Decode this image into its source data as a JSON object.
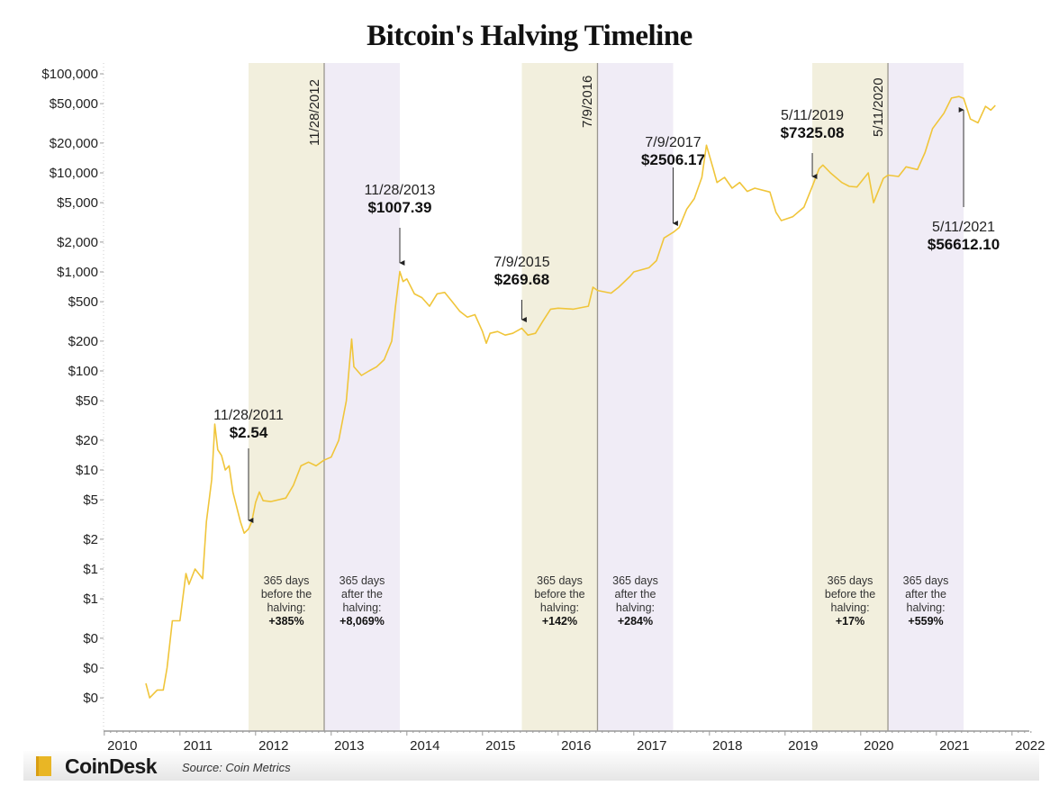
{
  "chart_data": {
    "type": "line",
    "title": "Bitcoin's Halving Timeline",
    "xlabel": "",
    "ylabel": "",
    "y_scale": "log",
    "ylim": [
      0.04,
      110000
    ],
    "xlim": [
      2010,
      2022.3
    ],
    "line_color": "#f0c53a",
    "x_ticks": [
      {
        "value": 2010,
        "label": "2010"
      },
      {
        "value": 2011,
        "label": "2011"
      },
      {
        "value": 2012,
        "label": "2012"
      },
      {
        "value": 2013,
        "label": "2013"
      },
      {
        "value": 2014,
        "label": "2014"
      },
      {
        "value": 2015,
        "label": "2015"
      },
      {
        "value": 2016,
        "label": "2016"
      },
      {
        "value": 2017,
        "label": "2017"
      },
      {
        "value": 2018,
        "label": "2018"
      },
      {
        "value": 2019,
        "label": "2019"
      },
      {
        "value": 2020,
        "label": "2020"
      },
      {
        "value": 2021,
        "label": "2021"
      },
      {
        "value": 2022,
        "label": "2022"
      }
    ],
    "y_ticks": [
      {
        "value": 100000,
        "label": "$100,000"
      },
      {
        "value": 50000,
        "label": "$50,000"
      },
      {
        "value": 20000,
        "label": "$20,000"
      },
      {
        "value": 10000,
        "label": "$10,000"
      },
      {
        "value": 5000,
        "label": "$5,000"
      },
      {
        "value": 2000,
        "label": "$2,000"
      },
      {
        "value": 1000,
        "label": "$1,000"
      },
      {
        "value": 500,
        "label": "$500"
      },
      {
        "value": 200,
        "label": "$200"
      },
      {
        "value": 100,
        "label": "$100"
      },
      {
        "value": 50,
        "label": "$50"
      },
      {
        "value": 20,
        "label": "$20"
      },
      {
        "value": 10,
        "label": "$10"
      },
      {
        "value": 5,
        "label": "$5"
      },
      {
        "value": 2,
        "label": "$2"
      },
      {
        "value": 1,
        "label": "$1"
      },
      {
        "value": 0.5,
        "label": "$1"
      },
      {
        "value": 0.2,
        "label": "$0"
      },
      {
        "value": 0.1,
        "label": "$0"
      },
      {
        "value": 0.05,
        "label": "$0"
      }
    ],
    "series": [
      {
        "x": [
          2010.55,
          2010.6,
          2010.7,
          2010.78,
          2010.83,
          2010.9,
          2011.0,
          2011.08,
          2011.12,
          2011.2,
          2011.3,
          2011.35,
          2011.42,
          2011.45,
          2011.46,
          2011.5,
          2011.55,
          2011.6,
          2011.65,
          2011.7,
          2011.8,
          2011.85,
          2011.907,
          2011.95,
          2012.0,
          2012.05,
          2012.1,
          2012.2,
          2012.4,
          2012.5,
          2012.6,
          2012.7,
          2012.8,
          2012.9,
          2013.0,
          2013.1,
          2013.2,
          2013.27,
          2013.3,
          2013.4,
          2013.5,
          2013.6,
          2013.7,
          2013.8,
          2013.85,
          2013.907,
          2013.95,
          2014.0,
          2014.1,
          2014.2,
          2014.3,
          2014.4,
          2014.5,
          2014.6,
          2014.7,
          2014.8,
          2014.9,
          2015.0,
          2015.05,
          2015.1,
          2015.2,
          2015.3,
          2015.4,
          2015.52,
          2015.6,
          2015.7,
          2015.8,
          2015.9,
          2016.0,
          2016.2,
          2016.4,
          2016.46,
          2016.52,
          2016.7,
          2016.8,
          2016.95,
          2017.0,
          2017.2,
          2017.3,
          2017.4,
          2017.52,
          2017.6,
          2017.7,
          2017.8,
          2017.9,
          2017.96,
          2018.05,
          2018.1,
          2018.2,
          2018.3,
          2018.4,
          2018.5,
          2018.6,
          2018.8,
          2018.88,
          2018.95,
          2019.1,
          2019.25,
          2019.36,
          2019.45,
          2019.5,
          2019.6,
          2019.75,
          2019.85,
          2019.95,
          2020.1,
          2020.17,
          2020.3,
          2020.36,
          2020.5,
          2020.6,
          2020.75,
          2020.85,
          2020.95,
          2021.1,
          2021.2,
          2021.3,
          2021.36,
          2021.45,
          2021.55,
          2021.65,
          2021.72,
          2021.78
        ],
        "y": [
          0.07,
          0.05,
          0.06,
          0.06,
          0.1,
          0.3,
          0.3,
          0.9,
          0.7,
          1.0,
          0.8,
          3,
          8,
          20,
          29,
          16,
          14,
          10,
          11,
          6,
          3,
          2.3,
          2.54,
          3,
          4.7,
          6,
          4.9,
          4.8,
          5.2,
          7,
          11,
          12,
          11,
          12.5,
          13.5,
          20,
          50,
          210,
          110,
          90,
          100,
          110,
          130,
          200,
          450,
          1007.39,
          800,
          850,
          600,
          550,
          450,
          600,
          620,
          500,
          400,
          350,
          370,
          250,
          190,
          240,
          250,
          230,
          240,
          269.68,
          230,
          240,
          320,
          420,
          430,
          420,
          450,
          700,
          650,
          610,
          700,
          900,
          1000,
          1100,
          1300,
          2200,
          2506.17,
          2800,
          4300,
          5500,
          9000,
          19000,
          11000,
          8000,
          9000,
          7000,
          8000,
          6500,
          7000,
          6400,
          4000,
          3300,
          3600,
          4500,
          7325.08,
          11000,
          12000,
          10000,
          8000,
          7300,
          7200,
          10000,
          5000,
          8800,
          9500,
          9200,
          11500,
          10800,
          16000,
          28000,
          40000,
          57000,
          59000,
          56612.1,
          35000,
          32000,
          47000,
          43000,
          48000
        ]
      }
    ],
    "bands": [
      {
        "start": 2011.907,
        "end": 2012.907,
        "color": "#f2efdd",
        "lines": [
          "365 days",
          "before the",
          "halving:"
        ],
        "pct": "+385%"
      },
      {
        "start": 2012.907,
        "end": 2013.907,
        "color": "#f0ecf6",
        "lines": [
          "365 days",
          "after the",
          "halving:"
        ],
        "pct": "+8,069%"
      },
      {
        "start": 2015.52,
        "end": 2016.52,
        "color": "#f2efdd",
        "lines": [
          "365 days",
          "before the",
          "halving:"
        ],
        "pct": "+142%"
      },
      {
        "start": 2016.52,
        "end": 2017.52,
        "color": "#f0ecf6",
        "lines": [
          "365 days",
          "after the",
          "halving:"
        ],
        "pct": "+284%"
      },
      {
        "start": 2019.36,
        "end": 2020.36,
        "color": "#f2efdd",
        "lines": [
          "365 days",
          "before the",
          "halving:"
        ],
        "pct": "+17%"
      },
      {
        "start": 2020.36,
        "end": 2021.36,
        "color": "#f0ecf6",
        "lines": [
          "365 days",
          "after the",
          "halving:"
        ],
        "pct": "+559%"
      }
    ],
    "halvings": [
      {
        "x": 2012.907,
        "label": "11/28/2012"
      },
      {
        "x": 2016.52,
        "label": "7/9/2016"
      },
      {
        "x": 2020.36,
        "label": "5/11/2020"
      }
    ],
    "annotations": [
      {
        "x": 2011.907,
        "date": "11/28/2011",
        "price": "$2.54"
      },
      {
        "x": 2013.907,
        "date": "11/28/2013",
        "price": "$1007.39"
      },
      {
        "x": 2015.52,
        "date": "7/9/2015",
        "price": "$269.68"
      },
      {
        "x": 2017.52,
        "date": "7/9/2017",
        "price": "$2506.17"
      },
      {
        "x": 2019.36,
        "date": "5/11/2019",
        "price": "$7325.08"
      },
      {
        "x": 2021.36,
        "date": "5/11/2021",
        "price": "$56612.10"
      }
    ]
  },
  "footer": {
    "brand": "CoinDesk",
    "source": "Source: Coin Metrics"
  }
}
